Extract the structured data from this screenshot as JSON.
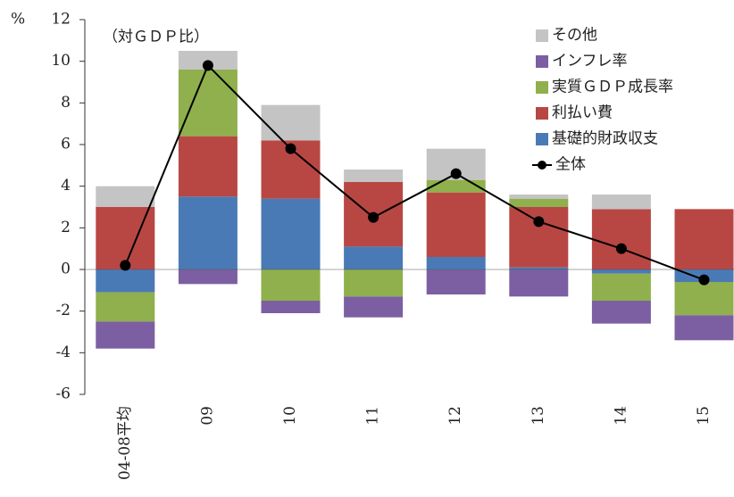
{
  "chart_data": {
    "type": "stacked_bar_line",
    "y_axis_label": "%",
    "annotation": "（対ＧＤＰ比）",
    "categories": [
      "04-08平均",
      "09",
      "10",
      "11",
      "12",
      "13",
      "14",
      "15"
    ],
    "series": [
      {
        "name": "基礎的財政収支",
        "color": "#4a7ab6",
        "values": [
          -1.1,
          3.5,
          3.4,
          1.1,
          0.6,
          0.1,
          -0.2,
          -0.6
        ]
      },
      {
        "name": "利払い費",
        "color": "#b84744",
        "values": [
          3.0,
          2.9,
          2.8,
          3.1,
          3.1,
          2.9,
          2.9,
          2.9
        ]
      },
      {
        "name": "実質ＧＤＰ成長率",
        "color": "#8fb04c",
        "values": [
          -1.4,
          3.2,
          -1.5,
          -1.3,
          0.6,
          0.4,
          -1.3,
          -1.6
        ]
      },
      {
        "name": "インフレ率",
        "color": "#7c5fa2",
        "values": [
          -1.3,
          -0.7,
          -0.6,
          -1.0,
          -1.2,
          -1.3,
          -1.1,
          -1.2
        ]
      },
      {
        "name": "その他",
        "color": "#c4c4c4",
        "values": [
          1.0,
          0.9,
          1.7,
          0.6,
          1.5,
          0.2,
          0.7,
          0
        ]
      }
    ],
    "line": {
      "name": "全体",
      "color": "#000000",
      "values": [
        0.2,
        9.8,
        5.8,
        2.5,
        4.6,
        2.3,
        1.0,
        -0.5
      ]
    },
    "ylim": [
      -6,
      12
    ],
    "yticks": [
      -6,
      -4,
      -2,
      0,
      2,
      4,
      6,
      8,
      10,
      12
    ]
  }
}
